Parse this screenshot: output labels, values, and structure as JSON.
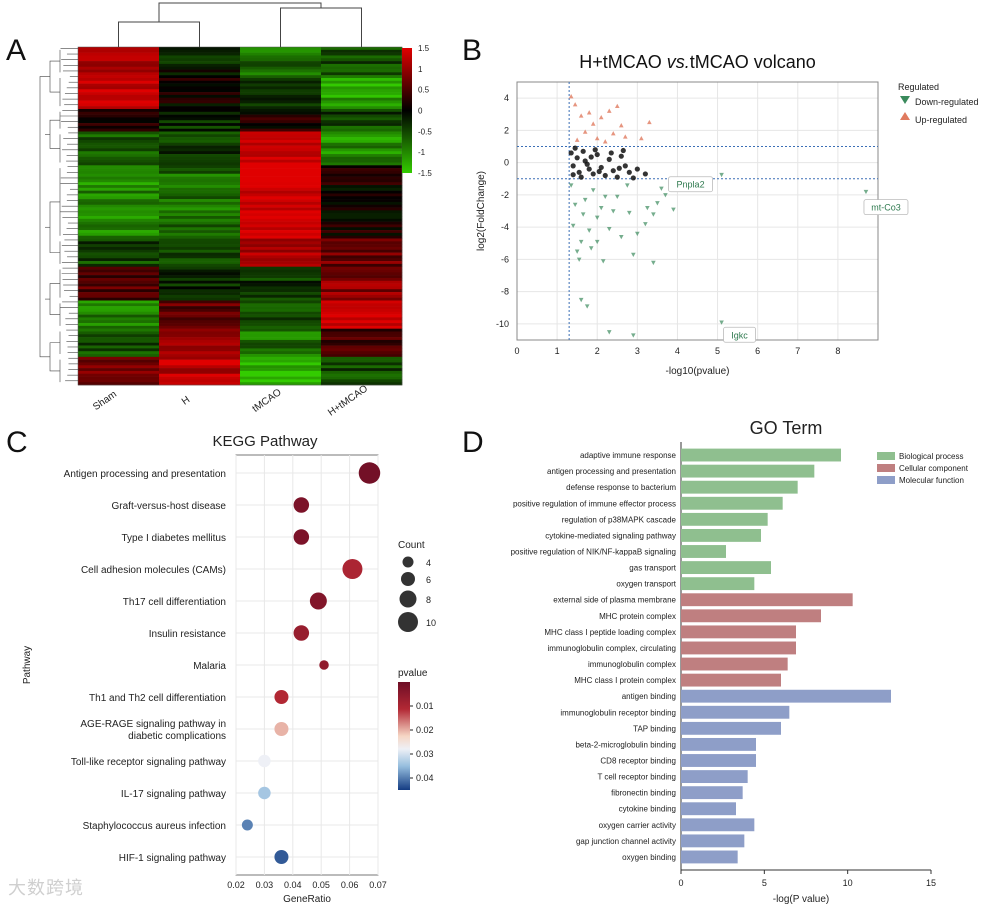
{
  "panels": {
    "a": "A",
    "b": "B",
    "c": "C",
    "d": "D"
  },
  "watermark": "大数跨境",
  "chart_data": [
    {
      "type": "heatmap",
      "panel": "A",
      "columns": [
        "Sham",
        "H",
        "tMCAO",
        "H+tMCAO"
      ],
      "color_scale": {
        "min": -1.5,
        "max": 1.5,
        "low": "#33cc00",
        "mid": "#000000",
        "high": "#e00000",
        "ticks": [
          "1.5",
          "1",
          "0.5",
          "0",
          "-0.5",
          "-1",
          "-1.5"
        ]
      },
      "cluster_blocks": [
        {
          "rows": 10,
          "values": [
            1.2,
            -0.2,
            -0.8,
            -0.6
          ]
        },
        {
          "rows": 12,
          "values": [
            1.4,
            0.1,
            -0.4,
            -1.2
          ]
        },
        {
          "rows": 8,
          "values": [
            0.3,
            -0.3,
            0.2,
            -0.5
          ]
        },
        {
          "rows": 12,
          "values": [
            -0.6,
            -0.4,
            1.5,
            -1.0
          ]
        },
        {
          "rows": 26,
          "values": [
            -1.0,
            -0.8,
            1.5,
            0.1
          ]
        },
        {
          "rows": 10,
          "values": [
            -0.5,
            -0.6,
            1.2,
            0.7
          ]
        },
        {
          "rows": 12,
          "values": [
            0.6,
            -0.2,
            -0.4,
            0.9
          ]
        },
        {
          "rows": 10,
          "values": [
            -0.9,
            0.6,
            -0.5,
            1.4
          ]
        },
        {
          "rows": 10,
          "values": [
            -0.6,
            1.0,
            -0.8,
            0.5
          ]
        },
        {
          "rows": 10,
          "values": [
            0.9,
            1.3,
            -1.3,
            -0.5
          ]
        }
      ]
    },
    {
      "type": "scatter",
      "panel": "B",
      "title": "H+tMCAO vs.tMCAO volcano",
      "title_main": "H+tMCAO ",
      "title_italic": "vs.",
      "title_tail": "tMCAO volcano",
      "xlabel": "-log10(pvalue)",
      "ylabel": "log2(FoldChange)",
      "xlim": [
        0,
        9
      ],
      "ylim": [
        -11,
        5
      ],
      "xticks": [
        0,
        1,
        2,
        3,
        4,
        5,
        6,
        7,
        8
      ],
      "yticks": [
        4,
        2,
        0,
        -2,
        -4,
        -6,
        -8,
        -10
      ],
      "thresholds": {
        "x": 1.3,
        "y": [
          1,
          -1
        ]
      },
      "legend": {
        "title": "Regulated",
        "down": "Down-regulated",
        "up": "Up-regulated"
      },
      "colors": {
        "down": "#3a8a5c",
        "up": "#e07a5f",
        "ns": "#111111"
      },
      "up": [
        [
          1.35,
          4.1
        ],
        [
          1.45,
          3.6
        ],
        [
          1.6,
          2.9
        ],
        [
          1.8,
          3.1
        ],
        [
          2.1,
          2.8
        ],
        [
          2.3,
          3.2
        ],
        [
          2.5,
          3.5
        ],
        [
          2.6,
          2.3
        ],
        [
          2.7,
          1.6
        ],
        [
          3.3,
          2.5
        ],
        [
          1.5,
          1.4
        ],
        [
          1.7,
          1.9
        ],
        [
          2.0,
          1.5
        ],
        [
          2.2,
          1.3
        ],
        [
          1.9,
          2.4
        ],
        [
          2.4,
          1.8
        ],
        [
          3.1,
          1.5
        ]
      ],
      "down": [
        [
          8.7,
          -1.8
        ],
        [
          5.1,
          -9.9
        ],
        [
          5.1,
          -0.75
        ],
        [
          3.7,
          -2.0
        ],
        [
          3.5,
          -2.5
        ],
        [
          3.4,
          -3.2
        ],
        [
          3.2,
          -3.8
        ],
        [
          3.0,
          -4.4
        ],
        [
          3.4,
          -6.2
        ],
        [
          2.9,
          -5.7
        ],
        [
          2.6,
          -4.6
        ],
        [
          2.4,
          -3.0
        ],
        [
          2.2,
          -2.1
        ],
        [
          2.0,
          -3.4
        ],
        [
          1.8,
          -4.2
        ],
        [
          1.6,
          -4.9
        ],
        [
          1.5,
          -5.5
        ],
        [
          1.4,
          -3.9
        ],
        [
          1.55,
          -6.0
        ],
        [
          2.3,
          -10.5
        ],
        [
          2.9,
          -10.7
        ],
        [
          1.6,
          -8.5
        ],
        [
          1.75,
          -8.9
        ],
        [
          1.45,
          -2.6
        ],
        [
          1.9,
          -1.7
        ],
        [
          2.1,
          -2.8
        ],
        [
          2.5,
          -2.1
        ],
        [
          2.8,
          -3.1
        ],
        [
          3.6,
          -1.6
        ],
        [
          1.7,
          -2.3
        ],
        [
          2.0,
          -4.9
        ],
        [
          2.3,
          -4.1
        ],
        [
          3.9,
          -2.9
        ],
        [
          4.0,
          -1.3
        ],
        [
          1.35,
          -1.4
        ],
        [
          1.65,
          -3.2
        ],
        [
          2.75,
          -1.4
        ],
        [
          3.25,
          -2.8
        ],
        [
          2.15,
          -6.1
        ],
        [
          1.85,
          -5.3
        ]
      ],
      "ns": [
        [
          1.35,
          0.6
        ],
        [
          1.4,
          -0.2
        ],
        [
          1.5,
          0.3
        ],
        [
          1.55,
          -0.6
        ],
        [
          1.6,
          -0.9
        ],
        [
          1.7,
          0.1
        ],
        [
          1.8,
          -0.4
        ],
        [
          1.9,
          -0.7
        ],
        [
          2.0,
          0.5
        ],
        [
          2.1,
          -0.3
        ],
        [
          2.2,
          -0.8
        ],
        [
          2.3,
          0.2
        ],
        [
          2.4,
          -0.5
        ],
        [
          2.5,
          -0.9
        ],
        [
          2.6,
          0.4
        ],
        [
          2.7,
          -0.2
        ],
        [
          2.8,
          -0.6
        ],
        [
          2.9,
          -0.95
        ],
        [
          3.0,
          -0.4
        ],
        [
          3.2,
          -0.7
        ],
        [
          1.45,
          0.9
        ],
        [
          1.65,
          0.7
        ],
        [
          1.75,
          -0.1
        ],
        [
          1.95,
          0.8
        ],
        [
          2.35,
          0.6
        ],
        [
          2.05,
          -0.55
        ],
        [
          1.4,
          -0.75
        ],
        [
          1.85,
          0.35
        ],
        [
          2.55,
          -0.35
        ],
        [
          2.65,
          0.75
        ]
      ],
      "labels": [
        {
          "text": "Pnpla2",
          "x": 5.1,
          "y": -0.75
        },
        {
          "text": "mt-Co3",
          "x": 8.7,
          "y": -1.8
        },
        {
          "text": "Igkc",
          "x": 5.1,
          "y": -9.9
        }
      ]
    },
    {
      "type": "scatter",
      "panel": "C",
      "title": "KEGG Pathway",
      "xlabel": "GeneRatio",
      "ylabel": "Pathway",
      "xlim": [
        0.02,
        0.07
      ],
      "xticks": [
        "0.02",
        "0.03",
        "0.04",
        "0.05",
        "0.06",
        "0.07"
      ],
      "size_legend": {
        "title": "Count",
        "ticks": [
          "4",
          "6",
          "8",
          "10"
        ]
      },
      "color_legend": {
        "title": "pvalue",
        "ticks": [
          "0.01",
          "0.02",
          "0.03",
          "0.04"
        ]
      },
      "pathways": [
        {
          "name": "Antigen processing and presentation",
          "ratio": 0.067,
          "count": 11,
          "pvalue": 0.0008
        },
        {
          "name": "Graft-versus-host disease",
          "ratio": 0.043,
          "count": 7,
          "pvalue": 0.002
        },
        {
          "name": "Type I diabetes mellitus",
          "ratio": 0.043,
          "count": 7,
          "pvalue": 0.002
        },
        {
          "name": "Cell adhesion molecules (CAMs)",
          "ratio": 0.061,
          "count": 10,
          "pvalue": 0.009
        },
        {
          "name": "Th17 cell differentiation",
          "ratio": 0.049,
          "count": 8,
          "pvalue": 0.003
        },
        {
          "name": "Insulin resistance",
          "ratio": 0.043,
          "count": 7,
          "pvalue": 0.006
        },
        {
          "name": "Malaria",
          "ratio": 0.051,
          "count": 3,
          "pvalue": 0.005
        },
        {
          "name": "Th1 and Th2 cell differentiation",
          "ratio": 0.036,
          "count": 6,
          "pvalue": 0.01
        },
        {
          "name": "AGE-RAGE signaling pathway in",
          "name2": "diabetic complications",
          "ratio": 0.036,
          "count": 6,
          "pvalue": 0.018
        },
        {
          "name": "Toll-like receptor signaling pathway",
          "ratio": 0.03,
          "count": 5,
          "pvalue": 0.026
        },
        {
          "name": "IL-17 signaling pathway",
          "ratio": 0.03,
          "count": 5,
          "pvalue": 0.031
        },
        {
          "name": "Staphylococcus aureus infection",
          "ratio": 0.024,
          "count": 4,
          "pvalue": 0.038
        },
        {
          "name": "HIF-1 signaling pathway",
          "ratio": 0.036,
          "count": 6,
          "pvalue": 0.042
        }
      ]
    },
    {
      "type": "bar",
      "orientation": "horizontal",
      "panel": "D",
      "title": "GO Term",
      "xlabel": "-log(P value)",
      "xlim": [
        0,
        15
      ],
      "xticks": [
        0,
        5,
        10,
        15
      ],
      "legend": [
        {
          "label": "Biological process",
          "color": "#8fbf8f"
        },
        {
          "label": "Cellular component",
          "color": "#bf7f80"
        },
        {
          "label": "Molecular function",
          "color": "#8e9ec8"
        }
      ],
      "terms": [
        {
          "label": "adaptive immune response",
          "value": 9.6,
          "group": 0
        },
        {
          "label": "antigen processing and presentation",
          "value": 8.0,
          "group": 0
        },
        {
          "label": "defense response to bacterium",
          "value": 7.0,
          "group": 0
        },
        {
          "label": "positive regulation of immune effector process",
          "value": 6.1,
          "group": 0
        },
        {
          "label": "regulation of p38MAPK cascade",
          "value": 5.2,
          "group": 0
        },
        {
          "label": "cytokine-mediated signaling pathway",
          "value": 4.8,
          "group": 0
        },
        {
          "label": "positive regulation of NIK/NF-kappaB signaling",
          "value": 2.7,
          "group": 0
        },
        {
          "label": "gas transport",
          "value": 5.4,
          "group": 0
        },
        {
          "label": "oxygen transport",
          "value": 4.4,
          "group": 0
        },
        {
          "label": "external side of plasma membrane",
          "value": 10.3,
          "group": 1
        },
        {
          "label": "MHC protein complex",
          "value": 8.4,
          "group": 1
        },
        {
          "label": "MHC class I peptide loading complex",
          "value": 6.9,
          "group": 1
        },
        {
          "label": "immunoglobulin complex, circulating",
          "value": 6.9,
          "group": 1
        },
        {
          "label": "immunoglobulin complex",
          "value": 6.4,
          "group": 1
        },
        {
          "label": "MHC class I protein complex",
          "value": 6.0,
          "group": 1
        },
        {
          "label": "antigen binding",
          "value": 12.6,
          "group": 2
        },
        {
          "label": "immunoglobulin receptor binding",
          "value": 6.5,
          "group": 2
        },
        {
          "label": "TAP binding",
          "value": 6.0,
          "group": 2
        },
        {
          "label": "beta-2-microglobulin binding",
          "value": 4.5,
          "group": 2
        },
        {
          "label": "CD8 receptor binding",
          "value": 4.5,
          "group": 2
        },
        {
          "label": "T cell receptor binding",
          "value": 4.0,
          "group": 2
        },
        {
          "label": "fibronectin binding",
          "value": 3.7,
          "group": 2
        },
        {
          "label": "cytokine binding",
          "value": 3.3,
          "group": 2
        },
        {
          "label": "oxygen carrier activity",
          "value": 4.4,
          "group": 2
        },
        {
          "label": "gap junction channel activity",
          "value": 3.8,
          "group": 2
        },
        {
          "label": "oxygen binding",
          "value": 3.4,
          "group": 2
        }
      ]
    }
  ]
}
